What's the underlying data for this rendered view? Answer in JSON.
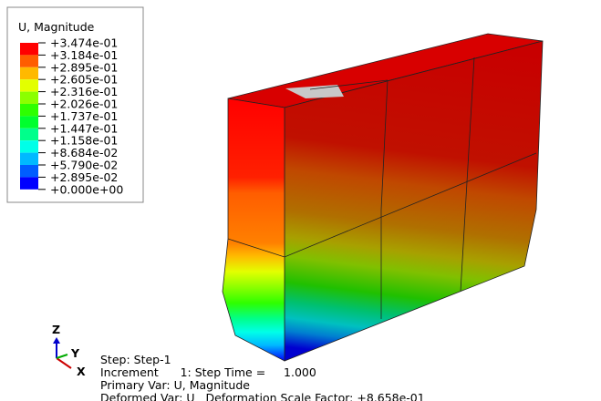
{
  "legend": {
    "title": "U, Magnitude",
    "labels": [
      "+3.474e-01",
      "+3.184e-01",
      "+2.895e-01",
      "+2.605e-01",
      "+2.316e-01",
      "+2.026e-01",
      "+1.737e-01",
      "+1.447e-01",
      "+1.158e-01",
      "+8.684e-02",
      "+5.790e-02",
      "+2.895e-02",
      "+0.000e+00"
    ],
    "colors": [
      "#ff0000",
      "#ff5d00",
      "#ffb900",
      "#e3ff00",
      "#8bff00",
      "#2eff00",
      "#00ff2e",
      "#00ff8b",
      "#00ffe8",
      "#00b9ff",
      "#005dff",
      "#0000ff"
    ]
  },
  "triad": {
    "z": "Z",
    "y": "Y",
    "x": "X"
  },
  "info": [
    "Step: Step-1",
    "Increment      1: Step Time =     1.000",
    "Primary Var: U, Magnitude",
    "Deformed Var: U   Deformation Scale Factor: +8.658e-01"
  ]
}
